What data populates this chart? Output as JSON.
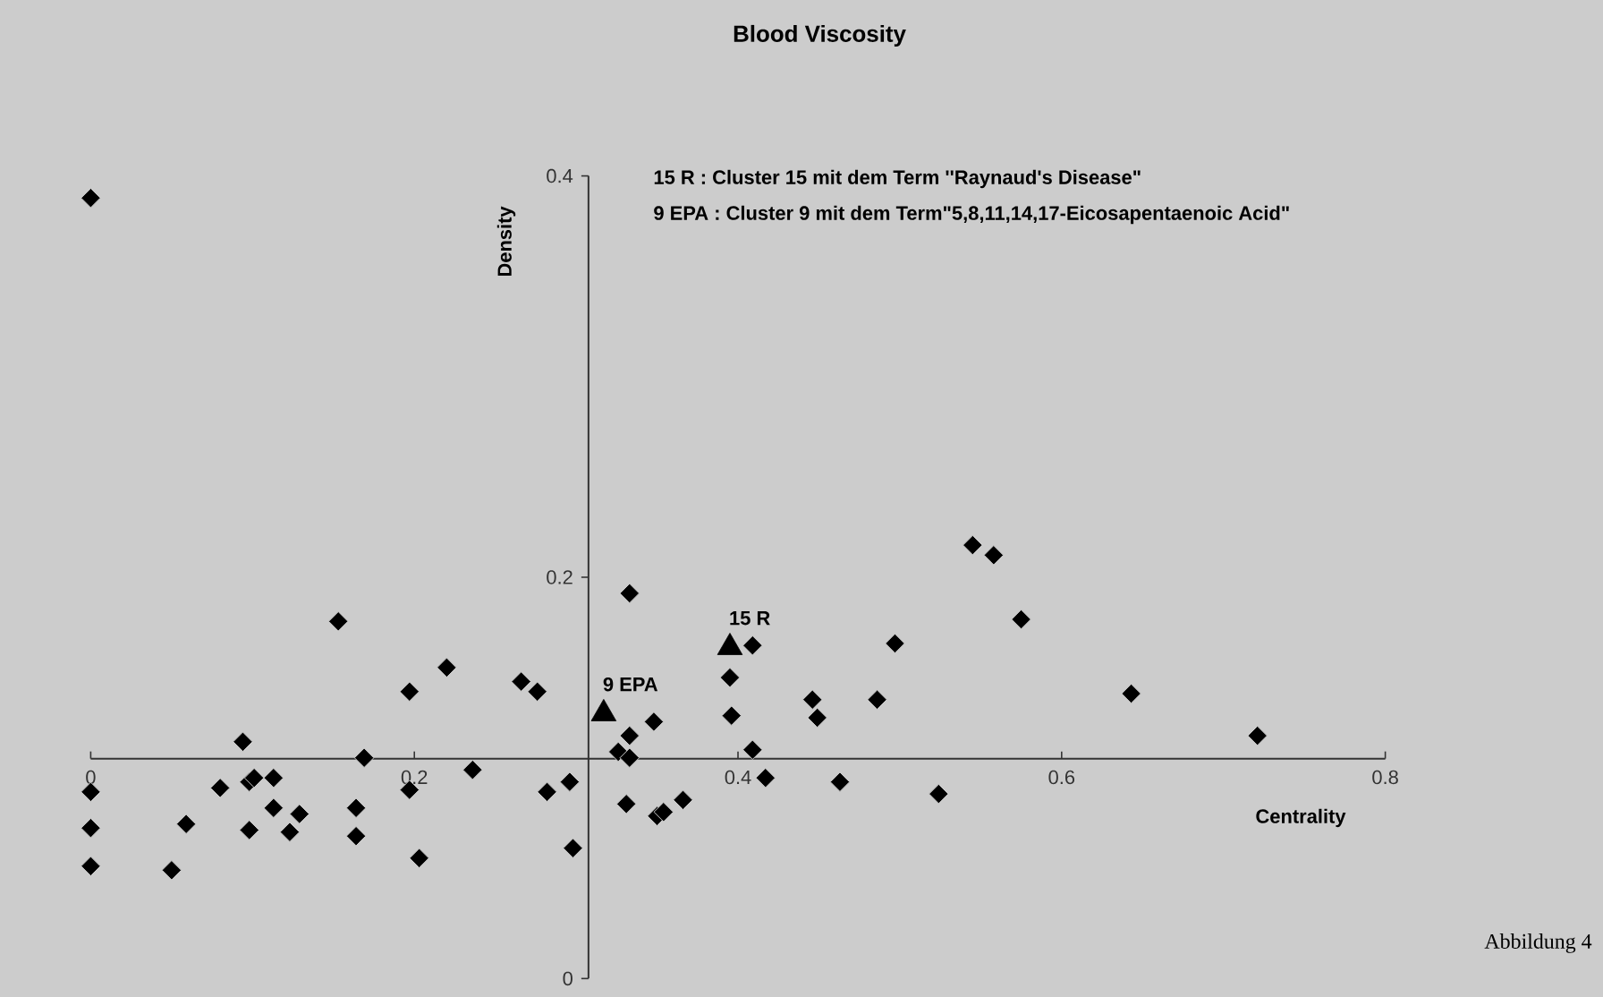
{
  "chart_data": {
    "type": "scatter",
    "title": "Blood Viscosity",
    "xlabel": "Centrality",
    "ylabel": "Density",
    "xlim": [
      0,
      0.8
    ],
    "ylim": [
      0,
      0.4
    ],
    "xticks": [
      0,
      0.2,
      0.4,
      0.6,
      0.8
    ],
    "yticks": [
      0,
      0.2,
      0.4
    ],
    "series": [
      {
        "color": "#000000",
        "marker": "diamond",
        "x": [
          0,
          0,
          0,
          0,
          0.05,
          0.059,
          0.08,
          0.094,
          0.098,
          0.101,
          0.113,
          0.098,
          0.113,
          0.123,
          0.129,
          0.153,
          0.164,
          0.164,
          0.169,
          0.197,
          0.197,
          0.203,
          0.22,
          0.236,
          0.266,
          0.276,
          0.282,
          0.296,
          0.298,
          0.326,
          0.331,
          0.333,
          0.333,
          0.333,
          0.348,
          0.35,
          0.354,
          0.366,
          0.395,
          0.396,
          0.409,
          0.417,
          0.409,
          0.446,
          0.449,
          0.463,
          0.486,
          0.497,
          0.524,
          0.545,
          0.558,
          0.575,
          0.643,
          0.721
        ],
        "values": [
          0.389,
          0.093,
          0.075,
          0.056,
          0.054,
          0.077,
          0.095,
          0.118,
          0.098,
          0.1,
          0.1,
          0.074,
          0.085,
          0.073,
          0.082,
          0.178,
          0.085,
          0.071,
          0.11,
          0.143,
          0.094,
          0.06,
          0.155,
          0.104,
          0.148,
          0.143,
          0.093,
          0.098,
          0.065,
          0.113,
          0.087,
          0.121,
          0.11,
          0.192,
          0.128,
          0.081,
          0.083,
          0.089,
          0.15,
          0.131,
          0.114,
          0.1,
          0.166,
          0.139,
          0.13,
          0.098,
          0.139,
          0.167,
          0.092,
          0.216,
          0.211,
          0.179,
          0.142,
          0.121
        ]
      },
      {
        "color": "#000000",
        "marker": "triangle",
        "x": [
          0.317,
          0.395
        ],
        "values": [
          0.132,
          0.165
        ]
      }
    ],
    "annotations": [
      "15 R :     Cluster 15 mit dem Term ''Raynaud's Disease\"",
      "9 EPA : Cluster 9 mit dem Term\"5,8,11,14,17-Eicosapentaenoic Acid\"",
      {
        "text": "15 R",
        "x": 0.395,
        "y": 0.165
      },
      {
        "text": "9 EPA",
        "x": 0.317,
        "y": 0.132
      },
      "Abbildung 4"
    ]
  }
}
